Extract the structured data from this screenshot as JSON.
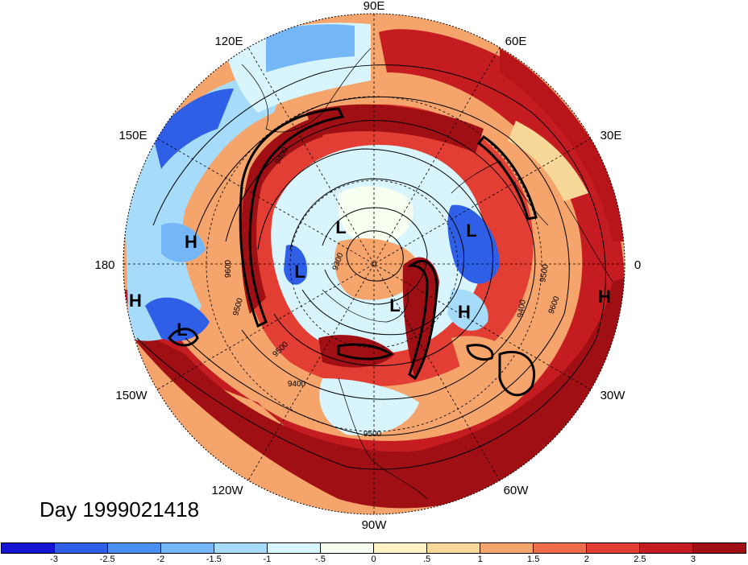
{
  "title": "Day 1999021418",
  "map": {
    "projection": "north-polar-stereographic",
    "lon_labels": [
      "90E",
      "60E",
      "30E",
      "0",
      "30W",
      "60W",
      "90W",
      "120W",
      "150W",
      "180",
      "150E",
      "120E"
    ],
    "pressure_centers": [
      {
        "label": "H",
        "lat": 47,
        "lon": 171
      },
      {
        "label": "H",
        "lat": 30,
        "lon": -171
      },
      {
        "label": "L",
        "lat": 40,
        "lon": -160
      },
      {
        "label": "L",
        "lat": 78,
        "lon": 149
      },
      {
        "label": "L",
        "lat": 82,
        "lon": -174
      },
      {
        "label": "L",
        "lat": 75,
        "lon": 25
      },
      {
        "label": "L",
        "lat": 81,
        "lon": -53
      },
      {
        "label": "H",
        "lat": 70,
        "lon": -16
      },
      {
        "label": "H",
        "lat": 32,
        "lon": -3
      }
    ],
    "contour_labels": [
      "9600",
      "9500",
      "9400",
      "9500",
      "9500",
      "9600",
      "9400",
      "9500",
      "9400",
      "9300"
    ],
    "colors": {
      "dark_blue": "#1b19d9",
      "blue": "#2f6de6",
      "light_blue": "#78c3f3",
      "pale_blue": "#d7f3fb",
      "cream": "#fff6d6",
      "orange": "#f2a36a",
      "red": "#e0322d",
      "dark_red": "#b01418"
    }
  },
  "colorbar": {
    "colors": [
      "#1414d2",
      "#2e5fe6",
      "#4a90f0",
      "#74b6f6",
      "#a6dcfa",
      "#d8f4fc",
      "#f7fff0",
      "#fff3c4",
      "#f7d898",
      "#f5a46c",
      "#ef6d4c",
      "#e23e33",
      "#c41c20",
      "#a00f14"
    ],
    "labels": [
      "-3",
      "-2.5",
      "-2",
      "-1.5",
      "-1",
      "-.5",
      "0",
      ".5",
      "1",
      "1.5",
      "2",
      "2.5",
      "3"
    ]
  }
}
